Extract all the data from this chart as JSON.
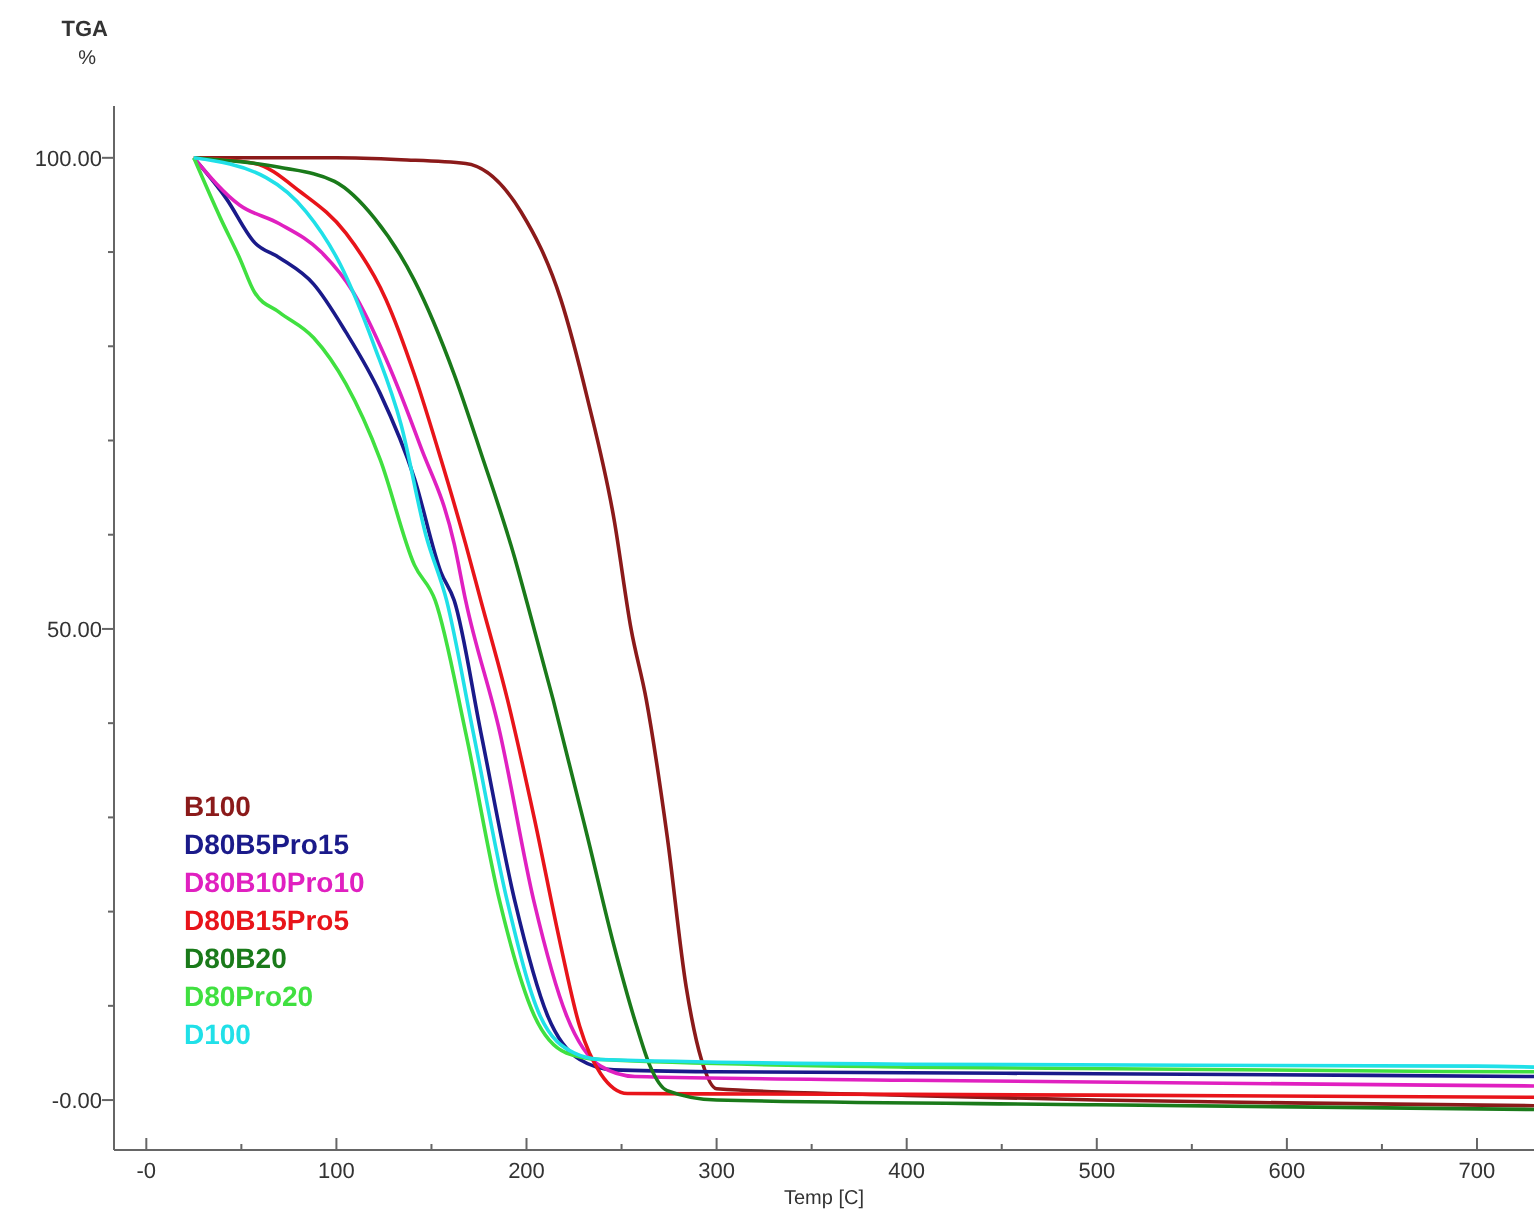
{
  "chart_data": {
    "type": "line",
    "xlabel": "Temp [C]",
    "ylabel": "TGA\n%",
    "xlim": [
      -17,
      730
    ],
    "ylim": [
      -5.3,
      105.5
    ],
    "xticks": [
      {
        "value": 0,
        "label": "-0"
      },
      {
        "value": 50,
        "label": null
      },
      100,
      {
        "value": 150,
        "label": null
      },
      200,
      {
        "value": 250,
        "label": null
      },
      300,
      {
        "value": 350,
        "label": null
      },
      400,
      {
        "value": 450,
        "label": null
      },
      500,
      {
        "value": 550,
        "label": null
      },
      600,
      {
        "value": 650,
        "label": null
      },
      700
    ],
    "yticks": [
      {
        "value": 0,
        "label": "-0.00"
      },
      {
        "value": 10,
        "label": null
      },
      {
        "value": 20,
        "label": null
      },
      {
        "value": 30,
        "label": null
      },
      {
        "value": 40,
        "label": null
      },
      {
        "value": 50,
        "label": "50.00"
      },
      {
        "value": 60,
        "label": null
      },
      {
        "value": 70,
        "label": null
      },
      {
        "value": 80,
        "label": null
      },
      {
        "value": 90,
        "label": null
      },
      {
        "value": 100,
        "label": "100.00"
      }
    ],
    "legend": "bottom left",
    "grid": false,
    "marker": "none",
    "line_style": "solid",
    "series": [
      {
        "name": "B100",
        "color": "#8b1a1a",
        "x": [
          25,
          100,
          134,
          168,
          197,
          218,
          232,
          246,
          255,
          263,
          274,
          284,
          292,
          300,
          400,
          500,
          600,
          730
        ],
        "values": [
          100,
          100,
          99.8,
          99.4,
          94.3,
          85,
          74.5,
          61.7,
          50,
          42.5,
          28,
          12,
          4.3,
          1.2,
          0.5,
          0,
          -0.3,
          -0.6
        ]
      },
      {
        "name": "D80B5Pro15",
        "color": "#1a1a8a",
        "x": [
          25,
          42,
          57,
          70,
          88,
          105,
          123,
          141,
          155,
          162,
          176,
          194,
          211,
          228,
          246,
          300,
          500,
          730
        ],
        "values": [
          100,
          95.7,
          91,
          89.4,
          86.6,
          81.5,
          75,
          66,
          56,
          53,
          39,
          21,
          9,
          4.3,
          3.2,
          3,
          2.8,
          2.5
        ]
      },
      {
        "name": "D80B10Pro10",
        "color": "#e020c0",
        "x": [
          25,
          49,
          70,
          92,
          109,
          126,
          144,
          162,
          168,
          186,
          204,
          221,
          239,
          257,
          400,
          730
        ],
        "values": [
          100,
          95,
          93,
          90,
          85.7,
          78.7,
          69.5,
          59,
          53,
          39,
          21,
          9,
          3.6,
          2.5,
          2.1,
          1.5
        ]
      },
      {
        "name": "D80B15Pro5",
        "color": "#e8141a",
        "x": [
          25,
          57,
          81,
          105,
          126,
          141,
          155,
          168,
          176,
          190,
          204,
          218,
          228,
          239,
          253,
          400,
          730
        ],
        "values": [
          100,
          99.4,
          96.4,
          92,
          85,
          77,
          68,
          59,
          53,
          42.5,
          30,
          16.4,
          7.8,
          2.8,
          0.7,
          0.6,
          0.3
        ]
      },
      {
        "name": "D80B20",
        "color": "#1a7a1a",
        "x": [
          25,
          70,
          99,
          120,
          141,
          162,
          176,
          194,
          200,
          214,
          232,
          246,
          258,
          265,
          274,
          300,
          500,
          730
        ],
        "values": [
          100,
          99,
          97.5,
          93.6,
          87,
          77,
          68.7,
          57.4,
          53,
          42.5,
          28,
          16.4,
          7.8,
          3.6,
          1,
          0,
          -0.5,
          -1
        ]
      },
      {
        "name": "D80Pro20",
        "color": "#40e040",
        "x": [
          25,
          39,
          49,
          57,
          70,
          88,
          105,
          123,
          141,
          152,
          168,
          186,
          204,
          221,
          239,
          400,
          730
        ],
        "values": [
          100,
          93.6,
          89.4,
          85.7,
          83.6,
          80.9,
          76,
          68,
          56.8,
          53,
          39,
          21,
          9,
          5,
          4.3,
          3.5,
          3
        ]
      },
      {
        "name": "D100",
        "color": "#20e0e8",
        "x": [
          25,
          63,
          84,
          102,
          120,
          134,
          147,
          158,
          172,
          190,
          207,
          225,
          239,
          400,
          700,
          730
        ],
        "values": [
          100,
          97.9,
          94.3,
          88.7,
          80,
          71.7,
          60,
          53,
          39,
          21,
          9,
          5,
          4.3,
          3.8,
          3.6,
          3.5
        ]
      }
    ]
  }
}
